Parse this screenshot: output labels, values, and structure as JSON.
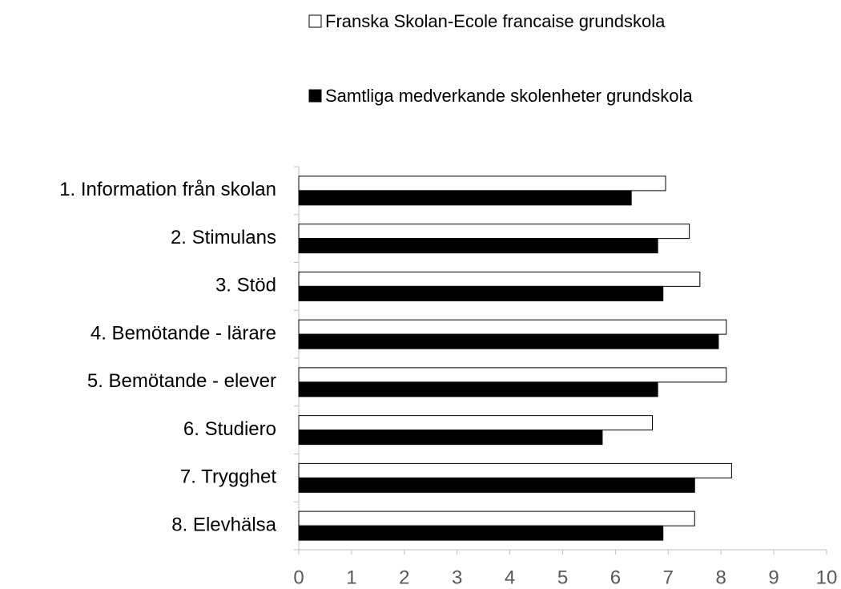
{
  "chart_data": {
    "type": "barh",
    "categories": [
      "1. Information från skolan",
      "2. Stimulans",
      "3. Stöd",
      "4. Bemötande - lärare",
      "5. Bemötande - elever",
      "6. Studiero",
      "7. Trygghet",
      "8. Elevhälsa"
    ],
    "series": [
      {
        "name": "Franska Skolan-Ecole francaise grundskola",
        "color": "#ffffff",
        "values": [
          6.95,
          7.4,
          7.6,
          8.1,
          8.1,
          6.7,
          8.2,
          7.5
        ]
      },
      {
        "name": "Samtliga medverkande skolenheter grundskola",
        "color": "#000000",
        "values": [
          6.3,
          6.8,
          6.9,
          7.95,
          6.8,
          5.75,
          7.5,
          6.9
        ]
      }
    ],
    "xlim": [
      0,
      10
    ],
    "xticks": [
      0,
      1,
      2,
      3,
      4,
      5,
      6,
      7,
      8,
      9,
      10
    ],
    "grid": false,
    "legend": "top"
  }
}
